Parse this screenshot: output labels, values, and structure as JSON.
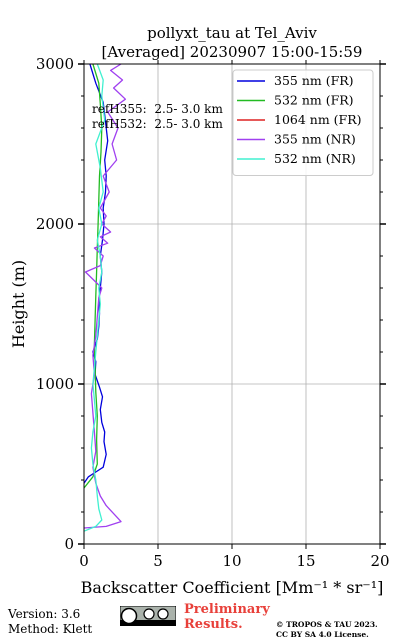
{
  "chart_data": {
    "type": "line",
    "title_line1": "pollyxt_tau at Tel_Aviv",
    "title_line2": "[Averaged] 20230907 15:00-15:59",
    "xlabel": "Backscatter Coefficient [Mm⁻¹ * sr⁻¹]",
    "ylabel": "Height (m)",
    "xlim": [
      0,
      20
    ],
    "ylim": [
      0,
      3000
    ],
    "xticks": [
      0,
      5,
      10,
      15,
      20
    ],
    "yticks": [
      0,
      1000,
      2000,
      3000
    ],
    "grid": true,
    "legend_position": "top-right",
    "annotations": [
      "refH355:  2.5- 3.0 km",
      "refH532:  2.5- 3.0 km"
    ],
    "series": [
      {
        "name": "355 nm (FR)",
        "color": "#0000dd",
        "x": [
          0.0,
          0.3,
          0.8,
          1.3,
          1.5,
          1.35,
          1.4,
          1.2,
          1.1,
          1.25,
          1.05,
          0.75,
          0.8,
          0.6,
          0.9,
          1.0,
          1.05,
          1.0,
          1.1,
          1.2,
          1.1,
          1.25,
          1.35,
          1.3,
          1.45,
          1.5,
          1.4,
          1.6,
          1.45,
          1.3,
          0.8,
          0.4
        ],
        "y": [
          380,
          420,
          450,
          480,
          560,
          640,
          700,
          760,
          840,
          920,
          980,
          1060,
          1140,
          1200,
          1280,
          1360,
          1440,
          1520,
          1600,
          1700,
          1800,
          1900,
          2000,
          2100,
          2200,
          2300,
          2400,
          2520,
          2640,
          2760,
          2880,
          3000
        ]
      },
      {
        "name": "532 nm (FR)",
        "color": "#22bb22",
        "x": [
          0.0,
          0.6,
          0.9,
          0.85,
          0.9,
          0.8,
          0.75,
          0.7,
          0.75,
          0.8,
          0.85,
          0.9,
          0.95,
          1.0,
          1.05,
          1.15,
          1.2,
          1.1,
          1.0,
          0.6
        ],
        "y": [
          350,
          420,
          500,
          650,
          800,
          950,
          1100,
          1250,
          1400,
          1550,
          1700,
          1850,
          2000,
          2150,
          2300,
          2450,
          2600,
          2750,
          2880,
          3000
        ]
      },
      {
        "name": "1064 nm (FR)",
        "color": "#dd2222",
        "x": [],
        "y": []
      },
      {
        "name": "355 nm (NR)",
        "color": "#a040f0",
        "x": [
          0.0,
          1.5,
          2.5,
          2.1,
          1.5,
          1.1,
          0.8,
          0.6,
          0.8,
          0.7,
          0.6,
          0.5,
          0.7,
          0.6,
          0.8,
          0.9,
          1.0,
          1.2,
          0.1,
          1.1,
          1.3,
          0.7,
          1.6,
          1.1,
          1.8,
          1.2,
          1.5,
          1.1,
          1.7,
          1.3,
          2.2,
          1.9,
          2.3,
          1.6,
          2.8,
          2.0,
          2.6,
          1.8,
          2.5
        ],
        "y": [
          100,
          110,
          140,
          180,
          240,
          300,
          380,
          480,
          580,
          700,
          820,
          940,
          1060,
          1180,
          1300,
          1420,
          1540,
          1600,
          1700,
          1740,
          1800,
          1850,
          1880,
          1920,
          1950,
          2000,
          2050,
          2100,
          2200,
          2300,
          2400,
          2500,
          2600,
          2700,
          2780,
          2850,
          2900,
          2960,
          3000
        ]
      },
      {
        "name": "532 nm (NR)",
        "color": "#40f0d0",
        "x": [
          0.0,
          0.8,
          1.2,
          1.0,
          0.9,
          0.8,
          0.6,
          0.5,
          0.6,
          0.8,
          0.7,
          0.6,
          0.7,
          0.8,
          0.9,
          1.0,
          1.1,
          1.0,
          1.2,
          1.1,
          0.9,
          1.2,
          1.0,
          1.3,
          1.1,
          0.8,
          1.4,
          1.2,
          1.3,
          0.9
        ],
        "y": [
          80,
          110,
          150,
          220,
          300,
          400,
          500,
          600,
          700,
          800,
          900,
          1000,
          1100,
          1200,
          1300,
          1400,
          1500,
          1600,
          1700,
          1800,
          1900,
          2000,
          2100,
          2200,
          2350,
          2500,
          2650,
          2800,
          2900,
          3000
        ]
      }
    ]
  },
  "footer": {
    "version": "Version: 3.6",
    "method": "Method: Klett",
    "preliminary_line1": "Preliminary",
    "preliminary_line2": "Results.",
    "copyright_line1": "© TROPOS & TAU 2023.",
    "copyright_line2": "CC BY SA 4.0 License."
  }
}
